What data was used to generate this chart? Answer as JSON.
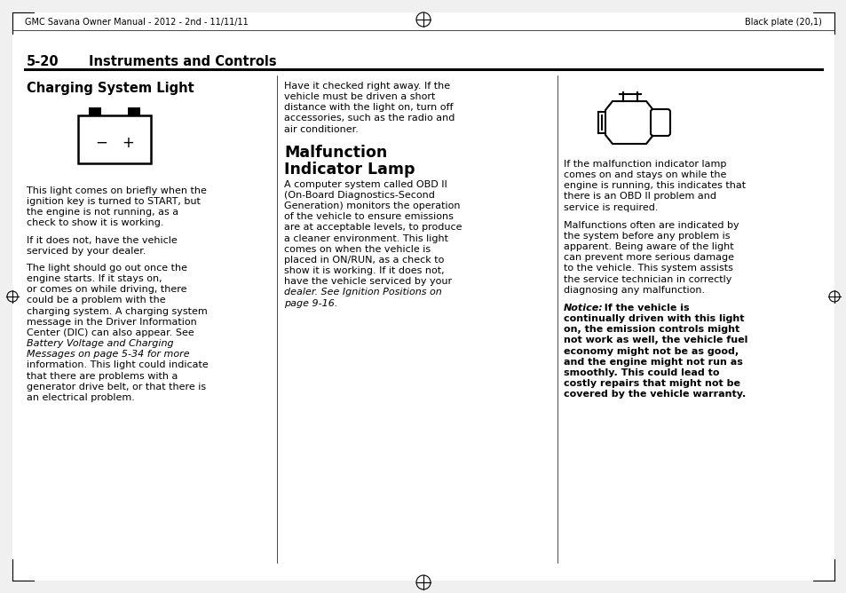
{
  "background_color": "#f0f0f0",
  "content_bg": "#ffffff",
  "header_left": "GMC Savana Owner Manual - 2012 - 2nd - 11/11/11",
  "header_right": "Black plate (20,1)",
  "section_num": "5-20",
  "section_title": "Instruments and Controls",
  "col1_heading": "Charging System Light",
  "col2_heading_line1": "Malfunction",
  "col2_heading_line2": "Indicator Lamp",
  "col1_para1": "This light comes on briefly when the\nignition key is turned to START, but\nthe engine is not running, as a\ncheck to show it is working.",
  "col1_para2": "If it does not, have the vehicle\nserviced by your dealer.",
  "col1_para3": "The light should go out once the\nengine starts. If it stays on,\nor comes on while driving, there\ncould be a problem with the\ncharging system. A charging system\nmessage in the Driver Information\nCenter (DIC) can also appear. See\nBattery Voltage and Charging\nMessages on page 5-34 for more\ninformation. This light could indicate\nthat there are problems with a\ngenerator drive belt, or that there is\nan electrical problem.",
  "col2_para_top": "Have it checked right away. If the\nvehicle must be driven a short\ndistance with the light on, turn off\naccessories, such as the radio and\nair conditioner.",
  "col2_para_body": "A computer system called OBD II\n(On-Board Diagnostics-Second\nGeneration) monitors the operation\nof the vehicle to ensure emissions\nare at acceptable levels, to produce\na cleaner environment. This light\ncomes on when the vehicle is\nplaced in ON/RUN, as a check to\nshow it is working. If it does not,\nhave the vehicle serviced by your\ndealer. See Ignition Positions on\npage 9-16.",
  "col3_para1": "If the malfunction indicator lamp\ncomes on and stays on while the\nengine is running, this indicates that\nthere is an OBD II problem and\nservice is required.",
  "col3_para2": "Malfunctions often are indicated by\nthe system before any problem is\napparent. Being aware of the light\ncan prevent more serious damage\nto the vehicle. This system assists\nthe service technician in correctly\ndiagnosing any malfunction.",
  "col3_notice_label": "Notice:",
  "col3_notice_label_rest": "  If the vehicle is",
  "col3_notice_body": "continually driven with this light\non, the emission controls might\nnot work as well, the vehicle fuel\neconomy might not be as good,\nand the engine might not run as\nsmoothly. This could lead to\ncostly repairs that might not be\ncovered by the vehicle warranty.",
  "col1_italic_lines": [
    "Battery Voltage and Charging",
    "Messages on page 5-34"
  ],
  "col2_italic_lines": [
    "Ignition Positions on",
    "page 9-16."
  ],
  "font_size_header": 7.0,
  "font_size_section": 10.5,
  "font_size_heading1": 10.5,
  "font_size_heading2": 12.5,
  "font_size_body": 8.0
}
